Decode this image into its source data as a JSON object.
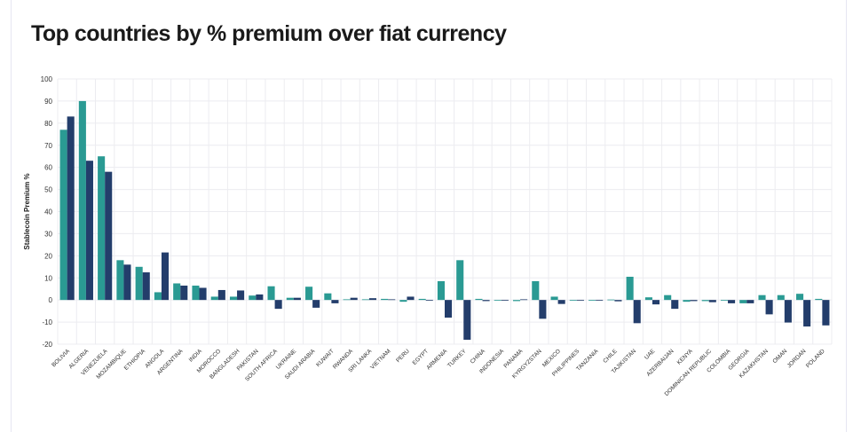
{
  "chart_data": {
    "type": "bar",
    "title": "Top countries by % premium over fiat currency",
    "xlabel": "",
    "ylabel": "Stablecoin Premium %",
    "ylim": [
      -20,
      100
    ],
    "yticks": [
      -20,
      -10,
      0,
      10,
      20,
      30,
      40,
      50,
      60,
      70,
      80,
      90,
      100
    ],
    "grid": true,
    "legend": "none",
    "categories": [
      "BOLIVIA",
      "ALGERIA",
      "VENEZUELA",
      "MOZAMBIQUE",
      "ETHIOPIA",
      "ANGOLA",
      "ARGENTINA",
      "INDIA",
      "MOROCCO",
      "BANGLADESH",
      "PAKISTAN",
      "SOUTH AFRICA",
      "UKRAINE",
      "SAUDI ARABIA",
      "KUWAIT",
      "RWANDA",
      "SRI LANKA",
      "VIETNAM",
      "PERU",
      "EGYPT",
      "ARMENIA",
      "TURKEY",
      "CHINA",
      "INDONESIA",
      "PANAMA",
      "KYRGYZSTAN",
      "MEXICO",
      "PHILIPPINES",
      "TANZANIA",
      "CHILE",
      "TAJIKISTAN",
      "UAE",
      "AZERBAIJAN",
      "KENYA",
      "DOMINICAN REPUBLIC",
      "COLOMBIA",
      "GEORGIA",
      "KAZAKHSTAN",
      "OMAN",
      "JORDAN",
      "POLAND"
    ],
    "series": [
      {
        "color": "#2a9a93",
        "values": [
          77,
          90,
          65,
          18,
          15,
          3.5,
          7.5,
          6.5,
          1.5,
          1.5,
          2,
          6.2,
          1,
          6,
          3,
          0.3,
          0.3,
          0.5,
          -0.8,
          0.5,
          8.5,
          18,
          0.5,
          0,
          -0.5,
          8.5,
          1.5,
          0,
          0,
          0.2,
          10.5,
          1.2,
          2.2,
          -0.8,
          -0.5,
          0,
          -1.5,
          2.2,
          2.2,
          2.8,
          0.5
        ]
      },
      {
        "color": "#233d6b",
        "values": [
          83,
          63,
          58,
          16,
          12.5,
          21.5,
          6.5,
          5.5,
          4.5,
          4.3,
          2.5,
          -4,
          1,
          -3.5,
          -1.5,
          1,
          0.8,
          0.3,
          1.5,
          0,
          -8,
          -18,
          -0.5,
          0,
          0.3,
          -8.5,
          -1.8,
          -0.2,
          -0.3,
          -0.6,
          -10.5,
          -2,
          -4,
          -0.5,
          -1,
          -1.5,
          -1.5,
          -6.5,
          -10.2,
          -12,
          -11.5
        ]
      }
    ]
  }
}
